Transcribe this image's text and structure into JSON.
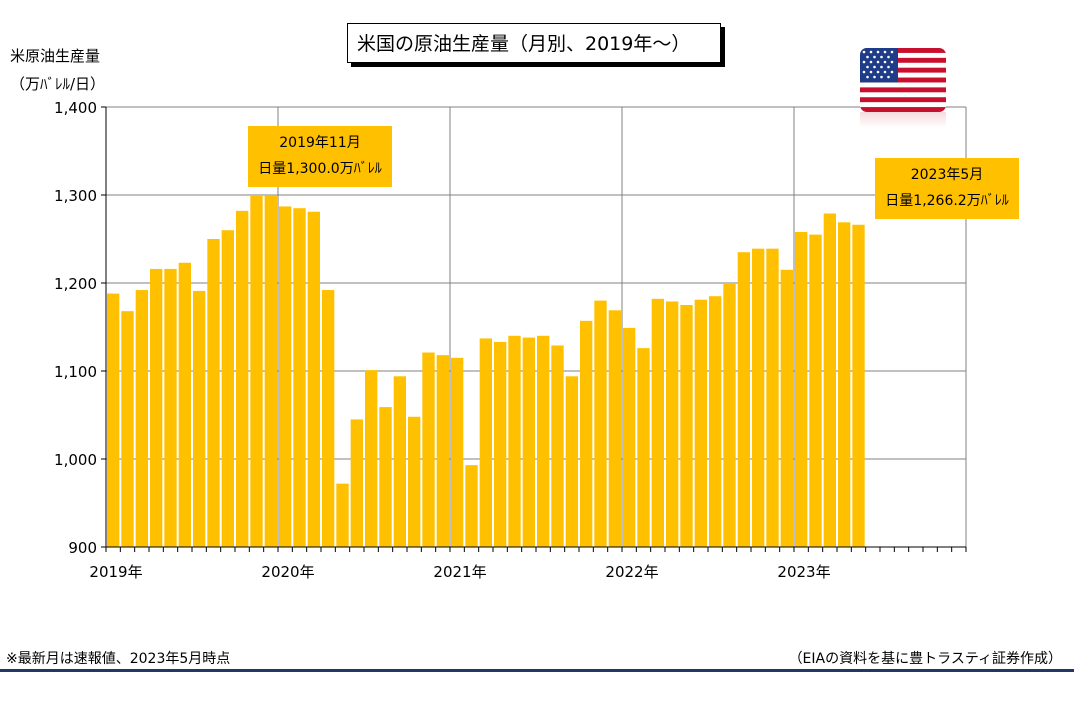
{
  "title": "米国の原油生産量（月別、2019年～）",
  "flag_icon": "us-flag-icon",
  "callouts": [
    {
      "line1": "2019年11月",
      "line2": "日量1,300.0万ﾊﾞﾚﾙ"
    },
    {
      "line1": "2023年5月",
      "line2": "日量1,266.2万ﾊﾞﾚﾙ"
    }
  ],
  "footnote": "※最新月は速報値、2023年5月時点",
  "source": "（EIAの資料を基に豊トラスティ証券作成）",
  "colors": {
    "bar": "#ffc000",
    "grid": "#808080",
    "rule": "#1f3864"
  },
  "chart_data": {
    "type": "bar",
    "title": "米国の原油生産量（月別、2019年～）",
    "ylabel_line1": "米原油生産量",
    "ylabel_line2": "（万ﾊﾞﾚﾙ/日）",
    "ylim": [
      900,
      1400
    ],
    "yticks": [
      "900",
      "1,000",
      "1,100",
      "1,200",
      "1,300",
      "1,400"
    ],
    "x_axis_labels": [
      "2019年",
      "2020年",
      "2021年",
      "2022年",
      "2023年"
    ],
    "x_total_months": 60,
    "grid": true,
    "categories": [
      "2019-01",
      "2019-02",
      "2019-03",
      "2019-04",
      "2019-05",
      "2019-06",
      "2019-07",
      "2019-08",
      "2019-09",
      "2019-10",
      "2019-11",
      "2019-12",
      "2020-01",
      "2020-02",
      "2020-03",
      "2020-04",
      "2020-05",
      "2020-06",
      "2020-07",
      "2020-08",
      "2020-09",
      "2020-10",
      "2020-11",
      "2020-12",
      "2021-01",
      "2021-02",
      "2021-03",
      "2021-04",
      "2021-05",
      "2021-06",
      "2021-07",
      "2021-08",
      "2021-09",
      "2021-10",
      "2021-11",
      "2021-12",
      "2022-01",
      "2022-02",
      "2022-03",
      "2022-04",
      "2022-05",
      "2022-06",
      "2022-07",
      "2022-08",
      "2022-09",
      "2022-10",
      "2022-11",
      "2022-12",
      "2023-01",
      "2023-02",
      "2023-03",
      "2023-04",
      "2023-05"
    ],
    "values": [
      1188,
      1168,
      1192,
      1216,
      1216,
      1223,
      1191,
      1250,
      1260,
      1282,
      1300,
      1299,
      1287,
      1285,
      1281,
      1192,
      972,
      1045,
      1101,
      1059,
      1094,
      1048,
      1121,
      1118,
      1115,
      993,
      1137,
      1133,
      1140,
      1138,
      1140,
      1129,
      1094,
      1157,
      1180,
      1169,
      1149,
      1126,
      1182,
      1179,
      1175,
      1181,
      1185,
      1200,
      1235,
      1239,
      1239,
      1215,
      1258,
      1255,
      1279,
      1269,
      1266.2
    ]
  }
}
